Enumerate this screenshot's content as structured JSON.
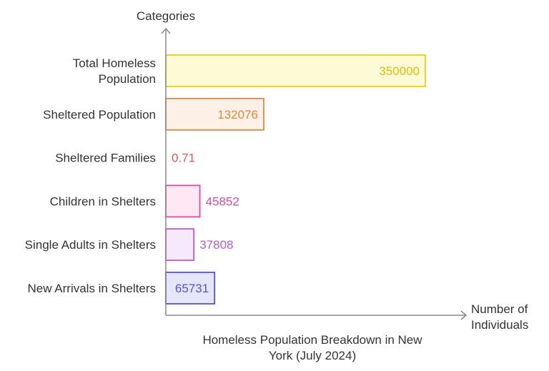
{
  "chart_data": {
    "type": "bar",
    "orientation": "horizontal",
    "y_axis_title": "Categories",
    "x_axis_title": [
      "Number of",
      "Individuals"
    ],
    "caption": [
      "Homeless Population Breakdown in New",
      "York (July 2024)"
    ],
    "categories": [
      [
        "Total Homeless",
        "Population"
      ],
      [
        "Sheltered Population"
      ],
      [
        "Sheltered Families"
      ],
      [
        "Children in Shelters"
      ],
      [
        "Single Adults in Shelters"
      ],
      [
        "New Arrivals in Shelters"
      ]
    ],
    "values": [
      350000,
      132076,
      0.71,
      45852,
      37808,
      65731
    ],
    "value_labels": [
      "350000",
      "132076",
      "0.71",
      "45852",
      "37808",
      "65731"
    ],
    "xlim": [
      0,
      350000
    ],
    "colors": [
      {
        "fill": "#fdfbd6",
        "stroke": "#e6cf16",
        "text": "#d9bf0a"
      },
      {
        "fill": "#fdf0e6",
        "stroke": "#e08a3c",
        "text": "#e08a3c"
      },
      {
        "fill": "#fde9e9",
        "stroke": "#e05a5a",
        "text": "#e05a5a"
      },
      {
        "fill": "#fde8f3",
        "stroke": "#e04aa0",
        "text": "#e04aa0"
      },
      {
        "fill": "#f6e8fd",
        "stroke": "#b45ae0",
        "text": "#b45ae0"
      },
      {
        "fill": "#e6e6fb",
        "stroke": "#5a50e0",
        "text": "#5a50e0"
      }
    ],
    "axis_color": "#8a8a8a",
    "grid": false,
    "legend": "none"
  }
}
